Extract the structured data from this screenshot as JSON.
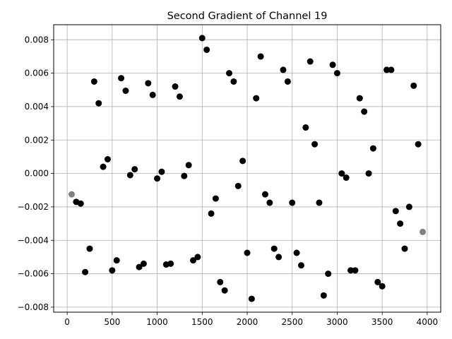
{
  "chart_data": {
    "type": "scatter",
    "title": "Second Gradient of Channel 19",
    "xlabel": "",
    "ylabel": "",
    "xlim": [
      -150,
      4150
    ],
    "ylim": [
      -0.0083,
      0.0089
    ],
    "x_ticks": [
      0,
      500,
      1000,
      1500,
      2000,
      2500,
      3000,
      3500,
      4000
    ],
    "y_ticks": [
      -0.008,
      -0.006,
      -0.004,
      -0.002,
      0.0,
      0.002,
      0.004,
      0.006,
      0.008
    ],
    "x_tick_labels": [
      "0",
      "500",
      "1000",
      "1500",
      "2000",
      "2500",
      "3000",
      "3500",
      "4000"
    ],
    "y_tick_labels": [
      "−0.008",
      "−0.006",
      "−0.004",
      "−0.002",
      "0.000",
      "0.002",
      "0.004",
      "0.006",
      "0.008"
    ],
    "grid": true,
    "colors": {
      "point": "#000000",
      "edge_point": "#808080",
      "grid": "#b0b0b0"
    },
    "points": [
      {
        "x": 50,
        "y": -0.00125,
        "edge": true
      },
      {
        "x": 100,
        "y": -0.0017
      },
      {
        "x": 150,
        "y": -0.0018
      },
      {
        "x": 200,
        "y": -0.0059
      },
      {
        "x": 250,
        "y": -0.0045
      },
      {
        "x": 300,
        "y": 0.0055
      },
      {
        "x": 350,
        "y": 0.0042
      },
      {
        "x": 400,
        "y": 0.0004
      },
      {
        "x": 450,
        "y": 0.00085
      },
      {
        "x": 500,
        "y": -0.0058
      },
      {
        "x": 550,
        "y": -0.0052
      },
      {
        "x": 600,
        "y": 0.0057
      },
      {
        "x": 650,
        "y": 0.00495
      },
      {
        "x": 700,
        "y": -0.0001
      },
      {
        "x": 750,
        "y": 0.00025
      },
      {
        "x": 800,
        "y": -0.0056
      },
      {
        "x": 850,
        "y": -0.0054
      },
      {
        "x": 900,
        "y": 0.0054
      },
      {
        "x": 950,
        "y": 0.0047
      },
      {
        "x": 1000,
        "y": -0.0003
      },
      {
        "x": 1050,
        "y": 0.0001
      },
      {
        "x": 1100,
        "y": -0.00545
      },
      {
        "x": 1150,
        "y": -0.0054
      },
      {
        "x": 1200,
        "y": 0.0052
      },
      {
        "x": 1250,
        "y": 0.0046
      },
      {
        "x": 1300,
        "y": -0.00015
      },
      {
        "x": 1350,
        "y": 0.0005
      },
      {
        "x": 1400,
        "y": -0.0052
      },
      {
        "x": 1450,
        "y": -0.005
      },
      {
        "x": 1500,
        "y": 0.0081
      },
      {
        "x": 1550,
        "y": 0.0074
      },
      {
        "x": 1600,
        "y": -0.0024
      },
      {
        "x": 1650,
        "y": -0.0015
      },
      {
        "x": 1700,
        "y": -0.0065
      },
      {
        "x": 1750,
        "y": -0.007
      },
      {
        "x": 1800,
        "y": 0.006
      },
      {
        "x": 1850,
        "y": 0.0055
      },
      {
        "x": 1900,
        "y": -0.00075
      },
      {
        "x": 1950,
        "y": 0.00075
      },
      {
        "x": 2000,
        "y": -0.00475
      },
      {
        "x": 2050,
        "y": -0.0075
      },
      {
        "x": 2100,
        "y": 0.0045
      },
      {
        "x": 2150,
        "y": 0.007
      },
      {
        "x": 2200,
        "y": -0.00125
      },
      {
        "x": 2250,
        "y": -0.00175
      },
      {
        "x": 2300,
        "y": -0.0045
      },
      {
        "x": 2350,
        "y": -0.005
      },
      {
        "x": 2400,
        "y": 0.0062
      },
      {
        "x": 2450,
        "y": 0.0055
      },
      {
        "x": 2500,
        "y": -0.00175
      },
      {
        "x": 2550,
        "y": -0.00475
      },
      {
        "x": 2600,
        "y": -0.0055
      },
      {
        "x": 2650,
        "y": 0.00275
      },
      {
        "x": 2700,
        "y": 0.0067
      },
      {
        "x": 2750,
        "y": 0.00175
      },
      {
        "x": 2800,
        "y": -0.00175
      },
      {
        "x": 2850,
        "y": -0.0073
      },
      {
        "x": 2900,
        "y": -0.006
      },
      {
        "x": 2950,
        "y": 0.0065
      },
      {
        "x": 3000,
        "y": 0.006
      },
      {
        "x": 3050,
        "y": 0.0
      },
      {
        "x": 3100,
        "y": -0.00025
      },
      {
        "x": 3150,
        "y": -0.0058
      },
      {
        "x": 3200,
        "y": -0.0058
      },
      {
        "x": 3250,
        "y": 0.0045
      },
      {
        "x": 3300,
        "y": 0.0037
      },
      {
        "x": 3350,
        "y": 0.0
      },
      {
        "x": 3400,
        "y": 0.0015
      },
      {
        "x": 3450,
        "y": -0.0065
      },
      {
        "x": 3500,
        "y": -0.00675
      },
      {
        "x": 3550,
        "y": 0.0062
      },
      {
        "x": 3600,
        "y": 0.0062
      },
      {
        "x": 3650,
        "y": -0.00225
      },
      {
        "x": 3700,
        "y": -0.003
      },
      {
        "x": 3750,
        "y": -0.0045
      },
      {
        "x": 3800,
        "y": -0.002
      },
      {
        "x": 3850,
        "y": 0.00525
      },
      {
        "x": 3900,
        "y": 0.00175
      },
      {
        "x": 3950,
        "y": -0.0035,
        "edge": true
      }
    ]
  }
}
